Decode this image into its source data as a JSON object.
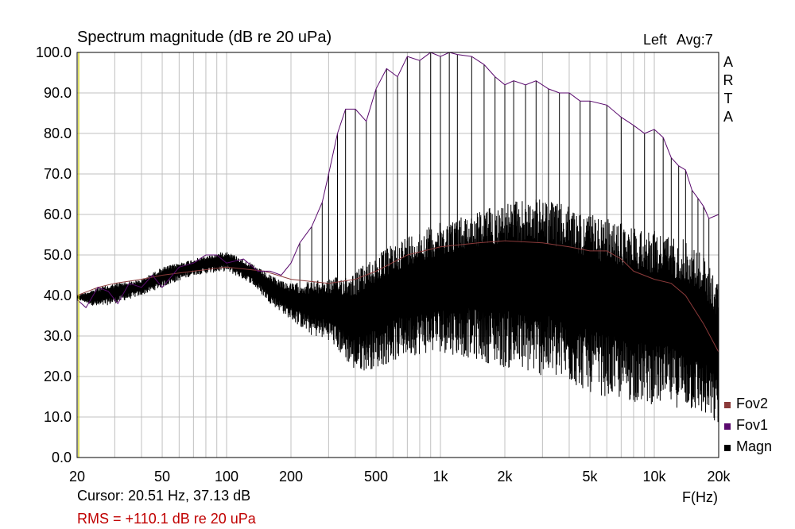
{
  "chart_data": {
    "type": "line",
    "title": "Spectrum magnitude (dB re 20 uPa)",
    "channel": "Left",
    "averaging": "Avg:7",
    "brand": "ARTA",
    "xlabel": "F(Hz)",
    "xscale": "log",
    "xlim": [
      20,
      20000
    ],
    "ylim": [
      0,
      100
    ],
    "grid": true,
    "x_ticks": [
      {
        "value": 20,
        "label": "20"
      },
      {
        "value": 50,
        "label": "50"
      },
      {
        "value": 100,
        "label": "100"
      },
      {
        "value": 200,
        "label": "200"
      },
      {
        "value": 500,
        "label": "500"
      },
      {
        "value": 1000,
        "label": "1k"
      },
      {
        "value": 2000,
        "label": "2k"
      },
      {
        "value": 5000,
        "label": "5k"
      },
      {
        "value": 10000,
        "label": "10k"
      },
      {
        "value": 20000,
        "label": "20k"
      }
    ],
    "y_ticks": [
      "0.0",
      "10.0",
      "20.0",
      "30.0",
      "40.0",
      "50.0",
      "60.0",
      "70.0",
      "80.0",
      "90.0",
      "100.0"
    ],
    "legend_position": "bottom-right",
    "series": [
      {
        "name": "Fov2",
        "color": "#8b3a3a",
        "points": [
          [
            20,
            40
          ],
          [
            25,
            42
          ],
          [
            30,
            43
          ],
          [
            40,
            44
          ],
          [
            50,
            45
          ],
          [
            70,
            46
          ],
          [
            100,
            47
          ],
          [
            150,
            46
          ],
          [
            200,
            44
          ],
          [
            300,
            43
          ],
          [
            400,
            44
          ],
          [
            500,
            46
          ],
          [
            700,
            50
          ],
          [
            1000,
            52
          ],
          [
            1500,
            53
          ],
          [
            2000,
            53.5
          ],
          [
            3000,
            53
          ],
          [
            4000,
            52
          ],
          [
            5000,
            51
          ],
          [
            6000,
            51
          ],
          [
            7000,
            49
          ],
          [
            8000,
            46
          ],
          [
            10000,
            44
          ],
          [
            12000,
            43
          ],
          [
            14000,
            40
          ],
          [
            17000,
            33
          ],
          [
            20000,
            26
          ]
        ]
      },
      {
        "name": "Fov1",
        "color": "#5a0a6e",
        "points": [
          [
            20,
            39
          ],
          [
            22,
            37
          ],
          [
            25,
            42
          ],
          [
            28,
            41
          ],
          [
            31,
            38
          ],
          [
            35,
            43
          ],
          [
            40,
            42
          ],
          [
            45,
            45
          ],
          [
            50,
            42
          ],
          [
            60,
            47
          ],
          [
            70,
            48
          ],
          [
            80,
            50
          ],
          [
            90,
            50
          ],
          [
            100,
            48
          ],
          [
            120,
            49
          ],
          [
            140,
            46
          ],
          [
            160,
            46
          ],
          [
            180,
            45
          ],
          [
            200,
            48
          ],
          [
            220,
            53
          ],
          [
            250,
            57
          ],
          [
            280,
            63
          ],
          [
            300,
            70
          ],
          [
            330,
            80
          ],
          [
            360,
            86
          ],
          [
            400,
            86
          ],
          [
            450,
            83
          ],
          [
            500,
            91
          ],
          [
            560,
            96
          ],
          [
            630,
            94
          ],
          [
            700,
            99
          ],
          [
            800,
            98
          ],
          [
            900,
            100
          ],
          [
            1000,
            99
          ],
          [
            1100,
            100
          ],
          [
            1200,
            99.5
          ],
          [
            1400,
            99
          ],
          [
            1600,
            97
          ],
          [
            1800,
            94
          ],
          [
            2000,
            92
          ],
          [
            2200,
            93
          ],
          [
            2500,
            92
          ],
          [
            2800,
            93
          ],
          [
            3200,
            91
          ],
          [
            3600,
            90
          ],
          [
            4000,
            90
          ],
          [
            4500,
            88
          ],
          [
            5000,
            88
          ],
          [
            6000,
            87
          ],
          [
            7000,
            84
          ],
          [
            8000,
            82
          ],
          [
            9000,
            80
          ],
          [
            10000,
            81
          ],
          [
            11000,
            79
          ],
          [
            12000,
            74
          ],
          [
            13000,
            72
          ],
          [
            14000,
            71
          ],
          [
            15000,
            66
          ],
          [
            16000,
            64
          ],
          [
            17000,
            62
          ],
          [
            18000,
            59
          ],
          [
            20000,
            60
          ]
        ]
      },
      {
        "name": "Magn",
        "color": "#000000",
        "envelope_upper": [
          [
            20,
            40
          ],
          [
            25,
            42
          ],
          [
            30,
            43
          ],
          [
            40,
            44
          ],
          [
            50,
            47
          ],
          [
            70,
            49
          ],
          [
            100,
            51
          ],
          [
            130,
            48
          ],
          [
            160,
            45
          ],
          [
            200,
            43
          ],
          [
            300,
            44
          ],
          [
            400,
            46
          ],
          [
            500,
            50
          ],
          [
            700,
            55
          ],
          [
            1000,
            58
          ],
          [
            1500,
            61
          ],
          [
            2000,
            63
          ],
          [
            3000,
            64
          ],
          [
            4000,
            62
          ],
          [
            5000,
            60
          ],
          [
            7000,
            58
          ],
          [
            10000,
            56
          ],
          [
            14000,
            54
          ],
          [
            17000,
            50
          ],
          [
            20000,
            43
          ]
        ],
        "envelope_lower": [
          [
            20,
            39
          ],
          [
            25,
            37
          ],
          [
            30,
            38
          ],
          [
            40,
            40
          ],
          [
            50,
            42
          ],
          [
            70,
            45
          ],
          [
            100,
            46
          ],
          [
            130,
            43
          ],
          [
            160,
            38
          ],
          [
            200,
            34
          ],
          [
            250,
            30
          ],
          [
            300,
            29
          ],
          [
            400,
            21
          ],
          [
            500,
            22
          ],
          [
            700,
            25
          ],
          [
            1000,
            26
          ],
          [
            1500,
            24
          ],
          [
            2000,
            22
          ],
          [
            3000,
            20
          ],
          [
            4000,
            18
          ],
          [
            5000,
            16
          ],
          [
            7000,
            14
          ],
          [
            10000,
            13
          ],
          [
            14000,
            12
          ],
          [
            17000,
            10
          ],
          [
            20000,
            7
          ]
        ]
      }
    ],
    "cursor_readout": "Cursor: 20.51 Hz, 37.13 dB",
    "rms_readout": "RMS = +110.1 dB re 20 uPa"
  }
}
